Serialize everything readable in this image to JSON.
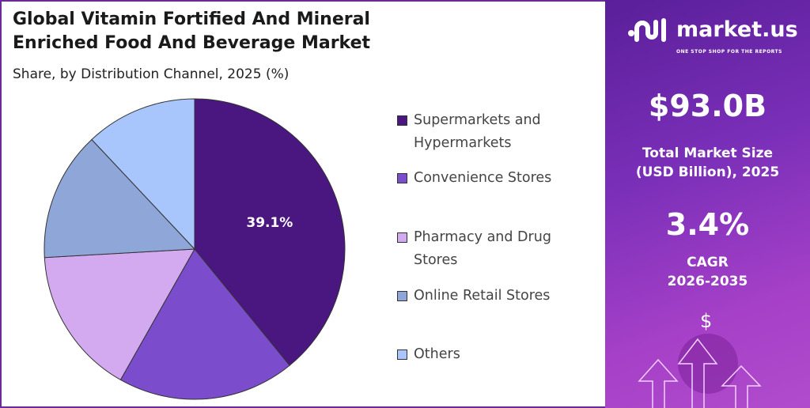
{
  "header": {
    "title_line1": "Global Vitamin Fortified And Mineral",
    "title_line2": "Enriched Food And Beverage Market",
    "subtitle": "Share, by Distribution Channel, 2025 (%)"
  },
  "chart_data": {
    "type": "pie",
    "title": "Global Vitamin Fortified And Mineral Enriched Food And Beverage Market",
    "subtitle": "Share, by Distribution Channel, 2025 (%)",
    "categories": [
      "Supermarkets and Hypermarkets",
      "Convenience Stores",
      "Pharmacy and Drug Stores",
      "Online Retail Stores",
      "Others"
    ],
    "values": [
      39.1,
      19.1,
      15.9,
      13.9,
      12.0
    ],
    "colors": [
      "#4a1680",
      "#7b4ccc",
      "#d3aaf0",
      "#8ea6d8",
      "#a8c6fc"
    ],
    "data_labels": [
      "39.1%"
    ],
    "legend_placement": "right"
  },
  "legend": [
    {
      "line1": "Supermarkets and",
      "line2": "Hypermarkets"
    },
    {
      "line1": "Convenience Stores",
      "line2": ""
    },
    {
      "line1": "Pharmacy and Drug",
      "line2": "Stores"
    },
    {
      "line1": "Online Retail Stores",
      "line2": ""
    },
    {
      "line1": "Others",
      "line2": ""
    }
  ],
  "sidebar": {
    "logo": "market.us",
    "tagline": "ONE STOP SHOP FOR THE REPORTS",
    "market_size": "$93.0B",
    "market_size_label1": "Total Market Size",
    "market_size_label2": "(USD Billion), 2025",
    "cagr": "3.4%",
    "cagr_label1": "CAGR",
    "cagr_label2": "2026-2035",
    "dollar": "$"
  }
}
